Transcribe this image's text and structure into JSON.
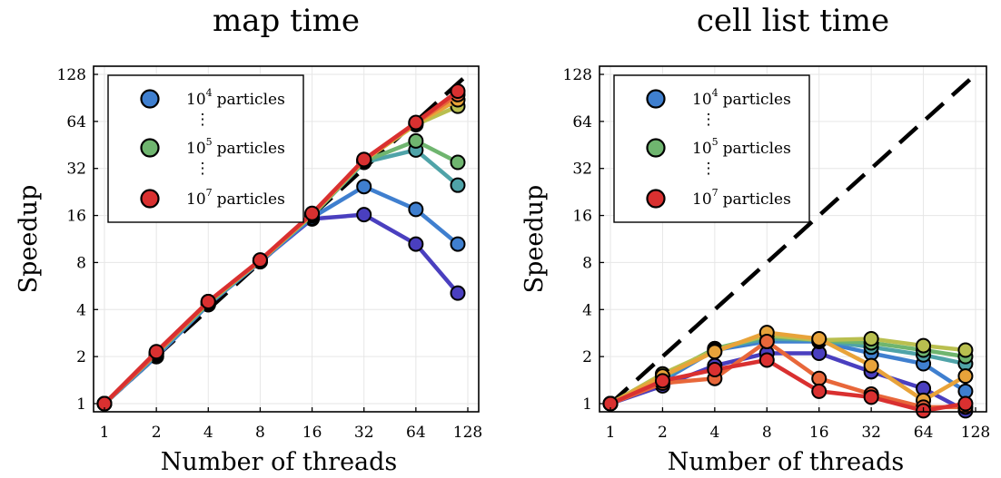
{
  "chart_data": [
    {
      "type": "line",
      "title": "map time",
      "xlabel": "Number of threads",
      "ylabel": "Speedup",
      "xscale": "log2",
      "yscale": "log2",
      "xlim": [
        1,
        128
      ],
      "ylim": [
        1,
        128
      ],
      "xticks": [
        1,
        2,
        4,
        8,
        16,
        32,
        64,
        128
      ],
      "xtick_labels": [
        "1",
        "2",
        "4",
        "8",
        "16",
        "32",
        "64",
        "128"
      ],
      "yticks": [
        1,
        2,
        4,
        8,
        16,
        32,
        64,
        128
      ],
      "ytick_labels": [
        "1",
        "2",
        "4",
        "8",
        "16",
        "32",
        "64",
        "128"
      ],
      "grid": true,
      "legend_position": "top-left",
      "x": [
        1,
        2,
        4,
        8,
        16,
        32,
        64,
        112
      ],
      "reference": {
        "style": "dashed",
        "color": "#000000",
        "x": [
          1,
          128
        ],
        "y": [
          1,
          128
        ]
      },
      "series": [
        {
          "color": "#4a3fbf",
          "values": [
            1,
            2.0,
            4.3,
            8.1,
            15.2,
            16.2,
            10.5,
            5.1
          ]
        },
        {
          "color": "#3f7fcf",
          "values": [
            1,
            2.0,
            4.3,
            8.1,
            15.5,
            24.5,
            17.5,
            10.5
          ]
        },
        {
          "color": "#4fa3a8",
          "values": [
            1,
            2.05,
            4.35,
            8.15,
            16.0,
            35.0,
            42.0,
            25.0
          ]
        },
        {
          "color": "#6fb56f",
          "values": [
            1,
            2.1,
            4.4,
            8.2,
            16.0,
            35.5,
            48.0,
            35.0
          ]
        },
        {
          "color": "#b9bf4f",
          "values": [
            1,
            2.1,
            4.45,
            8.2,
            16.2,
            36.0,
            61.0,
            80.0
          ]
        },
        {
          "color": "#e8a33a",
          "values": [
            1,
            2.1,
            4.5,
            8.2,
            16.3,
            36.0,
            62.0,
            88.0
          ]
        },
        {
          "color": "#e8673a",
          "values": [
            1,
            2.1,
            4.5,
            8.25,
            16.4,
            36.5,
            62.5,
            95.0
          ]
        },
        {
          "color": "#d93030",
          "values": [
            1,
            2.15,
            4.5,
            8.3,
            16.5,
            36.5,
            63.0,
            100.0
          ]
        }
      ],
      "legend": [
        {
          "color": "#3f7fcf",
          "base": "10",
          "exp": "4",
          "text": "particles",
          "dots_after": "⋮"
        },
        {
          "color": "#6fb56f",
          "base": "10",
          "exp": "5",
          "text": "particles",
          "dots_after": "⋮"
        },
        {
          "color": "#d93030",
          "base": "10",
          "exp": "7",
          "text": "particles",
          "dots_after": ""
        }
      ]
    },
    {
      "type": "line",
      "title": "cell list time",
      "xlabel": "Number of threads",
      "ylabel": "Speedup",
      "xscale": "log2",
      "yscale": "log2",
      "xlim": [
        1,
        128
      ],
      "ylim": [
        1,
        128
      ],
      "xticks": [
        1,
        2,
        4,
        8,
        16,
        32,
        64,
        128
      ],
      "xtick_labels": [
        "1",
        "2",
        "4",
        "8",
        "16",
        "32",
        "64",
        "128"
      ],
      "yticks": [
        1,
        2,
        4,
        8,
        16,
        32,
        64,
        128
      ],
      "ytick_labels": [
        "1",
        "2",
        "4",
        "8",
        "16",
        "32",
        "64",
        "128"
      ],
      "grid": true,
      "legend_position": "top-left",
      "x": [
        1,
        2,
        4,
        8,
        16,
        32,
        64,
        112
      ],
      "reference": {
        "style": "dashed",
        "color": "#000000",
        "x": [
          1,
          128
        ],
        "y": [
          1,
          128
        ]
      },
      "series": [
        {
          "color": "#4a3fbf",
          "values": [
            1,
            1.3,
            1.75,
            2.1,
            2.1,
            1.6,
            1.25,
            0.9
          ]
        },
        {
          "color": "#3f7fcf",
          "values": [
            1,
            1.4,
            2.2,
            2.5,
            2.5,
            2.1,
            1.8,
            1.2
          ]
        },
        {
          "color": "#4fa3a8",
          "values": [
            1,
            1.45,
            2.25,
            2.6,
            2.55,
            2.3,
            2.05,
            1.8
          ]
        },
        {
          "color": "#6fb56f",
          "values": [
            1,
            1.5,
            2.25,
            2.7,
            2.55,
            2.45,
            2.2,
            2.0
          ]
        },
        {
          "color": "#b9bf4f",
          "values": [
            1,
            1.55,
            2.2,
            2.75,
            2.55,
            2.6,
            2.35,
            2.2
          ]
        },
        {
          "color": "#e8a33a",
          "values": [
            1,
            1.5,
            2.15,
            2.85,
            2.6,
            1.75,
            1.05,
            1.5
          ]
        },
        {
          "color": "#e8673a",
          "values": [
            1,
            1.35,
            1.45,
            2.5,
            1.45,
            1.15,
            0.95,
            0.95
          ]
        },
        {
          "color": "#d93030",
          "values": [
            1,
            1.4,
            1.65,
            1.9,
            1.2,
            1.1,
            0.9,
            1.0
          ]
        }
      ],
      "legend": [
        {
          "color": "#3f7fcf",
          "base": "10",
          "exp": "4",
          "text": "particles",
          "dots_after": "⋮"
        },
        {
          "color": "#6fb56f",
          "base": "10",
          "exp": "5",
          "text": "particles",
          "dots_after": "⋮"
        },
        {
          "color": "#d93030",
          "base": "10",
          "exp": "7",
          "text": "particles",
          "dots_after": ""
        }
      ]
    }
  ]
}
